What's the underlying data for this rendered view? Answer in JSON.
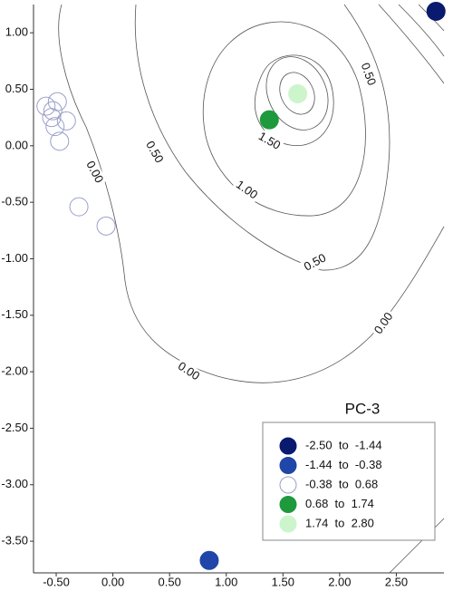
{
  "chart_data": {
    "type": "scatter",
    "legend_title": "PC-3",
    "legend_position": "lower right",
    "xlim": [
      -0.7,
      2.92
    ],
    "ylim": [
      -3.78,
      1.25
    ],
    "xticks": [
      {
        "value": -0.5,
        "label": "-0.50"
      },
      {
        "value": 0,
        "label": "0.00"
      },
      {
        "value": 0.5,
        "label": "0.50"
      },
      {
        "value": 1,
        "label": "1.00"
      },
      {
        "value": 1.5,
        "label": "1.50"
      },
      {
        "value": 2,
        "label": "2.00"
      },
      {
        "value": 2.5,
        "label": "2.50"
      }
    ],
    "yticks": [
      {
        "value": 1,
        "label": "1.00"
      },
      {
        "value": 0.5,
        "label": "0.50"
      },
      {
        "value": 0,
        "label": "0.00"
      },
      {
        "value": -0.5,
        "label": "-0.50"
      },
      {
        "value": -1,
        "label": "-1.00"
      },
      {
        "value": -1.5,
        "label": "-1.50"
      },
      {
        "value": -2,
        "label": "-2.00"
      },
      {
        "value": -2.5,
        "label": "-2.50"
      },
      {
        "value": -3,
        "label": "-3.00"
      },
      {
        "value": -3.5,
        "label": "-3.50"
      }
    ],
    "contour_levels": [
      {
        "value": 0,
        "label": "0.00"
      },
      {
        "value": 0.5,
        "label": "0.50"
      },
      {
        "value": 1,
        "label": "1.00"
      },
      {
        "value": 1.5,
        "label": "1.50"
      }
    ],
    "series": [
      {
        "name": "-2.50  to  -1.44",
        "color": "#0a1a6e",
        "x": [
          2.85
        ],
        "y": [
          1.19
        ]
      },
      {
        "name": "-1.44  to  -0.38",
        "color": "#1f46a8",
        "x": [
          0.85
        ],
        "y": [
          -3.67
        ]
      },
      {
        "name": "-0.38  to  0.68",
        "color": "none",
        "x": [
          -0.59,
          -0.53,
          -0.49,
          -0.54,
          -0.51,
          -0.41,
          -0.47,
          -0.3,
          -0.06
        ],
        "y": [
          0.35,
          0.31,
          0.39,
          0.25,
          0.17,
          0.22,
          0.04,
          -0.54,
          -0.71
        ]
      },
      {
        "name": "0.68  to  1.74",
        "color": "#1e9a3c",
        "x": [
          1.38
        ],
        "y": [
          0.23
        ]
      },
      {
        "name": "1.74  to  2.80",
        "color": "#ccf5cc",
        "x": [
          1.63
        ],
        "y": [
          0.46
        ]
      }
    ]
  }
}
